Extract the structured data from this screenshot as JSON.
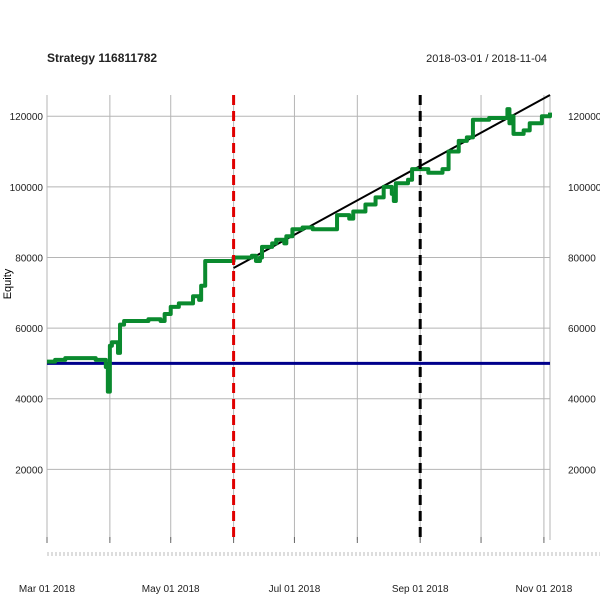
{
  "chart_data": {
    "type": "line",
    "title": "Strategy 116811782",
    "date_range": "2018-03-01 / 2018-11-04",
    "ylabel": "Equity",
    "xlabel": "",
    "grid": true,
    "legend": "none",
    "x_range": [
      "2018-03-01",
      "2018-11-04"
    ],
    "ylim": [
      0,
      126000
    ],
    "x_ticks": [
      {
        "date": "2018-03-01",
        "label": "Mar 01 2018"
      },
      {
        "date": "2018-04-01",
        "label": ""
      },
      {
        "date": "2018-05-01",
        "label": "May 01 2018"
      },
      {
        "date": "2018-06-01",
        "label": ""
      },
      {
        "date": "2018-07-01",
        "label": "Jul 01 2018"
      },
      {
        "date": "2018-08-01",
        "label": ""
      },
      {
        "date": "2018-09-01",
        "label": "Sep 01 2018"
      },
      {
        "date": "2018-10-01",
        "label": ""
      },
      {
        "date": "2018-11-01",
        "label": "Nov 01 2018"
      }
    ],
    "y_ticks": [
      {
        "value": 20000,
        "label": "20000"
      },
      {
        "value": 40000,
        "label": "40000"
      },
      {
        "value": 60000,
        "label": "60000"
      },
      {
        "value": 80000,
        "label": "80000"
      },
      {
        "value": 100000,
        "label": "100000"
      },
      {
        "value": 120000,
        "label": "120000"
      }
    ],
    "series": [
      {
        "color": "#0a8a2e",
        "style": "step",
        "points": [
          [
            "2018-03-01",
            50500
          ],
          [
            "2018-03-05",
            51000
          ],
          [
            "2018-03-10",
            51500
          ],
          [
            "2018-03-20",
            51500
          ],
          [
            "2018-03-25",
            51000
          ],
          [
            "2018-03-28",
            51000
          ],
          [
            "2018-03-30",
            49000
          ],
          [
            "2018-03-31",
            42000
          ],
          [
            "2018-04-01",
            55000
          ],
          [
            "2018-04-02",
            56000
          ],
          [
            "2018-04-04",
            56000
          ],
          [
            "2018-04-05",
            53000
          ],
          [
            "2018-04-06",
            61000
          ],
          [
            "2018-04-08",
            62000
          ],
          [
            "2018-04-20",
            62500
          ],
          [
            "2018-04-25",
            62500
          ],
          [
            "2018-04-26",
            62000
          ],
          [
            "2018-04-28",
            64000
          ],
          [
            "2018-05-01",
            66000
          ],
          [
            "2018-05-05",
            67000
          ],
          [
            "2018-05-10",
            67000
          ],
          [
            "2018-05-12",
            69000
          ],
          [
            "2018-05-15",
            68000
          ],
          [
            "2018-05-16",
            72000
          ],
          [
            "2018-05-18",
            79000
          ],
          [
            "2018-05-31",
            79000
          ],
          [
            "2018-06-01",
            80000
          ],
          [
            "2018-06-10",
            80500
          ],
          [
            "2018-06-12",
            79000
          ],
          [
            "2018-06-14",
            80000
          ],
          [
            "2018-06-15",
            83000
          ],
          [
            "2018-06-20",
            84000
          ],
          [
            "2018-06-22",
            85000
          ],
          [
            "2018-06-26",
            84000
          ],
          [
            "2018-06-27",
            86000
          ],
          [
            "2018-06-30",
            88000
          ],
          [
            "2018-07-05",
            88500
          ],
          [
            "2018-07-10",
            88000
          ],
          [
            "2018-07-20",
            88000
          ],
          [
            "2018-07-22",
            92000
          ],
          [
            "2018-07-28",
            91000
          ],
          [
            "2018-07-30",
            93000
          ],
          [
            "2018-08-05",
            95000
          ],
          [
            "2018-08-10",
            97000
          ],
          [
            "2018-08-14",
            100000
          ],
          [
            "2018-08-18",
            98000
          ],
          [
            "2018-08-19",
            96000
          ],
          [
            "2018-08-20",
            101000
          ],
          [
            "2018-08-26",
            102000
          ],
          [
            "2018-08-28",
            105000
          ],
          [
            "2018-09-03",
            105000
          ],
          [
            "2018-09-05",
            104000
          ],
          [
            "2018-09-12",
            105000
          ],
          [
            "2018-09-15",
            110000
          ],
          [
            "2018-09-20",
            113000
          ],
          [
            "2018-09-24",
            114000
          ],
          [
            "2018-09-27",
            119000
          ],
          [
            "2018-10-05",
            119500
          ],
          [
            "2018-10-12",
            119500
          ],
          [
            "2018-10-14",
            122000
          ],
          [
            "2018-10-15",
            118000
          ],
          [
            "2018-10-16",
            120000
          ],
          [
            "2018-10-17",
            115000
          ],
          [
            "2018-10-22",
            116000
          ],
          [
            "2018-10-25",
            118000
          ],
          [
            "2018-10-29",
            118000
          ],
          [
            "2018-10-31",
            120000
          ],
          [
            "2018-11-04",
            121000
          ]
        ]
      }
    ],
    "trend_line": {
      "color": "#000000",
      "points": [
        [
          "2018-06-01",
          77000
        ],
        [
          "2018-11-04",
          126000
        ]
      ]
    },
    "hline": {
      "value": 50000,
      "color": "#00008b"
    },
    "vlines": [
      {
        "date": "2018-06-01",
        "color": "#e00000",
        "style": "dashed"
      },
      {
        "date": "2018-09-01",
        "color": "#000000",
        "style": "dashed"
      }
    ]
  }
}
